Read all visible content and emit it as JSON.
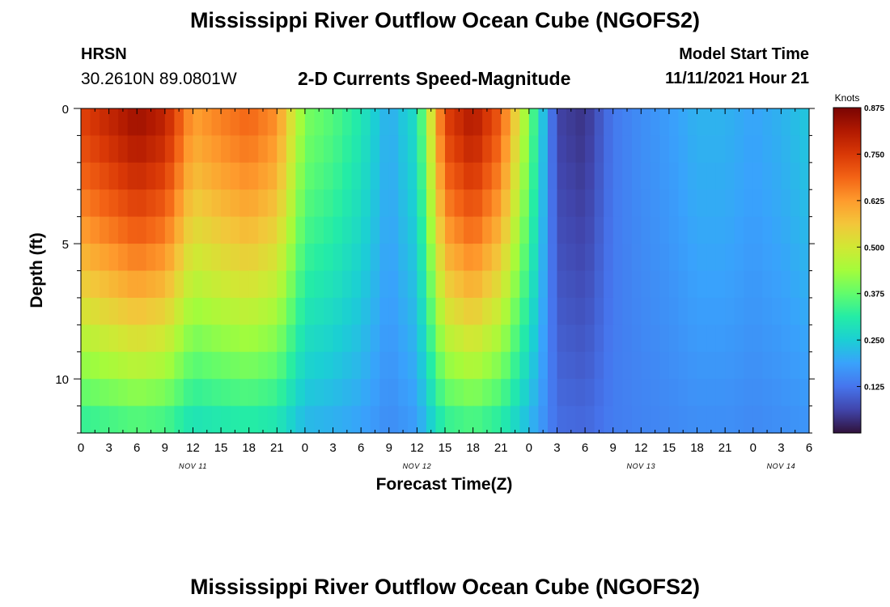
{
  "header": {
    "title": "Mississippi River Outflow Ocean Cube (NGOFS2)",
    "station": "HRSN",
    "coordinates": "30.2610N  89.0801W",
    "subtitle": "2-D Currents Speed-Magnitude",
    "start_label": "Model Start Time",
    "start_value": "11/11/2021 Hour 21"
  },
  "footer": {
    "title": "Mississippi River Outflow Ocean Cube (NGOFS2)"
  },
  "chart_data": {
    "type": "heatmap",
    "title": "2-D Currents Speed-Magnitude",
    "xlabel": "Forecast Time(Z)",
    "ylabel": "Depth (ft)",
    "x_range_hours": [
      0,
      78
    ],
    "x_ticks": [
      {
        "hour": 0,
        "label": "0"
      },
      {
        "hour": 3,
        "label": "3"
      },
      {
        "hour": 6,
        "label": "6"
      },
      {
        "hour": 9,
        "label": "9"
      },
      {
        "hour": 12,
        "label": "12"
      },
      {
        "hour": 15,
        "label": "15"
      },
      {
        "hour": 18,
        "label": "18"
      },
      {
        "hour": 21,
        "label": "21"
      },
      {
        "hour": 24,
        "label": "0"
      },
      {
        "hour": 27,
        "label": "3"
      },
      {
        "hour": 30,
        "label": "6"
      },
      {
        "hour": 33,
        "label": "9"
      },
      {
        "hour": 36,
        "label": "12"
      },
      {
        "hour": 39,
        "label": "15"
      },
      {
        "hour": 42,
        "label": "18"
      },
      {
        "hour": 45,
        "label": "21"
      },
      {
        "hour": 48,
        "label": "0"
      },
      {
        "hour": 51,
        "label": "3"
      },
      {
        "hour": 54,
        "label": "6"
      },
      {
        "hour": 57,
        "label": "9"
      },
      {
        "hour": 60,
        "label": "12"
      },
      {
        "hour": 63,
        "label": "15"
      },
      {
        "hour": 66,
        "label": "18"
      },
      {
        "hour": 69,
        "label": "21"
      },
      {
        "hour": 72,
        "label": "0"
      },
      {
        "hour": 75,
        "label": "3"
      },
      {
        "hour": 78,
        "label": "6"
      }
    ],
    "date_labels": [
      {
        "hour": 12,
        "label": "NOV 11"
      },
      {
        "hour": 36,
        "label": "NOV 12"
      },
      {
        "hour": 60,
        "label": "NOV 13"
      },
      {
        "hour": 75,
        "label": "NOV 14"
      }
    ],
    "y_range_ft": [
      0,
      12
    ],
    "y_ticks": [
      {
        "value": 0,
        "label": "0"
      },
      {
        "value": 5,
        "label": "5"
      },
      {
        "value": 10,
        "label": "10"
      }
    ],
    "depth_levels_ft": [
      0.5,
      1.5,
      2.5,
      3.5,
      4.5,
      5.5,
      6.5,
      7.5,
      8.5,
      9.5,
      10.5,
      11.5
    ],
    "surface_speed_knots": [
      [
        0,
        0.74
      ],
      [
        3,
        0.79
      ],
      [
        6,
        0.84
      ],
      [
        9,
        0.8
      ],
      [
        12,
        0.62
      ],
      [
        15,
        0.66
      ],
      [
        18,
        0.69
      ],
      [
        21,
        0.64
      ],
      [
        24,
        0.4
      ],
      [
        27,
        0.36
      ],
      [
        30,
        0.3
      ],
      [
        33,
        0.2
      ],
      [
        36,
        0.28
      ],
      [
        39,
        0.74
      ],
      [
        42,
        0.82
      ],
      [
        45,
        0.7
      ],
      [
        48,
        0.4
      ],
      [
        51,
        0.06
      ],
      [
        54,
        0.04
      ],
      [
        57,
        0.13
      ],
      [
        60,
        0.16
      ],
      [
        63,
        0.18
      ],
      [
        66,
        0.21
      ],
      [
        69,
        0.21
      ],
      [
        72,
        0.19
      ],
      [
        75,
        0.21
      ],
      [
        78,
        0.24
      ]
    ],
    "colorbar": {
      "label": "Knots",
      "range": [
        0,
        0.875
      ],
      "ticks": [
        "0.875",
        "0.750",
        "0.625",
        "0.500",
        "0.375",
        "0.250",
        "0.125"
      ],
      "colors": [
        "#30123b",
        "#4145ab",
        "#4675ed",
        "#39a2fc",
        "#1bcfd4",
        "#24eca6",
        "#61fc6c",
        "#a4fc3b",
        "#d1e834",
        "#f3c63a",
        "#fe9b2d",
        "#f36315",
        "#d93806",
        "#b11901",
        "#7a0403"
      ]
    }
  }
}
